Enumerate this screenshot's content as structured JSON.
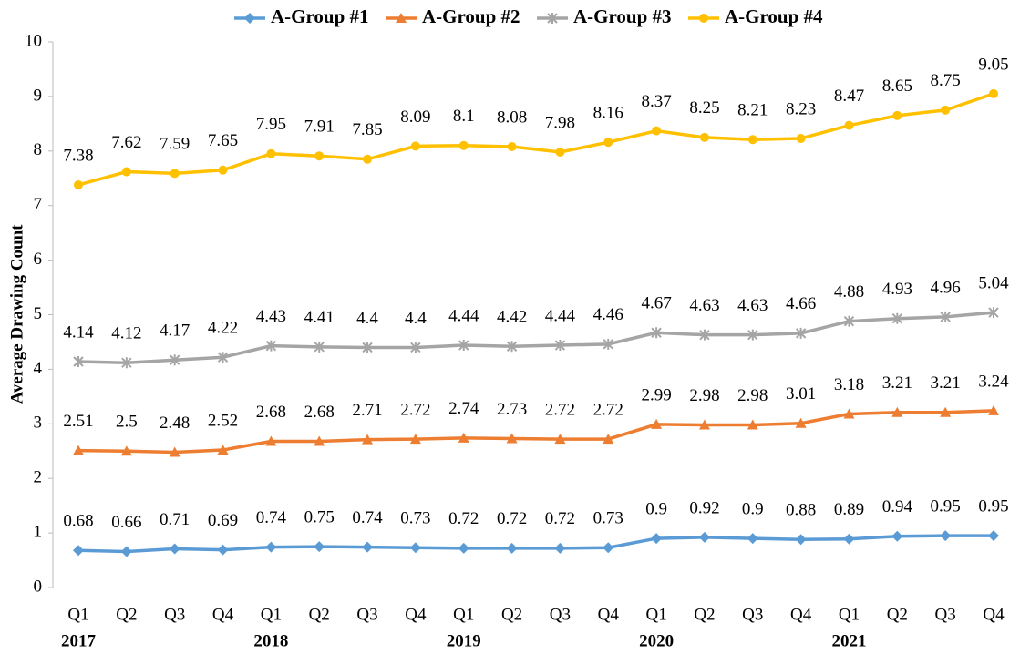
{
  "chart_data": {
    "type": "line",
    "y_label": "Average Drawing Count",
    "categories": [
      "Q1",
      "Q2",
      "Q3",
      "Q4",
      "Q1",
      "Q2",
      "Q3",
      "Q4",
      "Q1",
      "Q2",
      "Q3",
      "Q4",
      "Q1",
      "Q2",
      "Q3",
      "Q4",
      "Q1",
      "Q2",
      "Q3",
      "Q4"
    ],
    "year_groups": [
      "2017",
      "2018",
      "2019",
      "2020",
      "2021"
    ],
    "series": [
      {
        "name": "A-Group #1",
        "color": "#5b9bd5",
        "marker": "diamond",
        "values": [
          0.68,
          0.66,
          0.71,
          0.69,
          0.74,
          0.75,
          0.74,
          0.73,
          0.72,
          0.72,
          0.72,
          0.73,
          0.9,
          0.92,
          0.9,
          0.88,
          0.89,
          0.94,
          0.95,
          0.95
        ]
      },
      {
        "name": "A-Group #2",
        "color": "#ed7d31",
        "marker": "triangle",
        "values": [
          2.51,
          2.5,
          2.48,
          2.52,
          2.68,
          2.68,
          2.71,
          2.72,
          2.74,
          2.73,
          2.72,
          2.72,
          2.99,
          2.98,
          2.98,
          3.01,
          3.18,
          3.21,
          3.21,
          3.24
        ]
      },
      {
        "name": "A-Group #3",
        "color": "#a5a5a5",
        "marker": "star",
        "values": [
          4.14,
          4.12,
          4.17,
          4.22,
          4.43,
          4.41,
          4.4,
          4.4,
          4.44,
          4.42,
          4.44,
          4.46,
          4.67,
          4.63,
          4.63,
          4.66,
          4.88,
          4.93,
          4.96,
          5.04
        ]
      },
      {
        "name": "A-Group #4",
        "color": "#ffc000",
        "marker": "circle",
        "values": [
          7.38,
          7.62,
          7.59,
          7.65,
          7.95,
          7.91,
          7.85,
          8.09,
          8.1,
          8.08,
          7.98,
          8.16,
          8.37,
          8.25,
          8.21,
          8.23,
          8.47,
          8.65,
          8.75,
          9.05
        ]
      }
    ],
    "ylim": [
      0,
      10
    ],
    "yticks": [
      0,
      1,
      2,
      3,
      4,
      5,
      6,
      7,
      8,
      9,
      10
    ],
    "grid": false,
    "legend": "top"
  }
}
